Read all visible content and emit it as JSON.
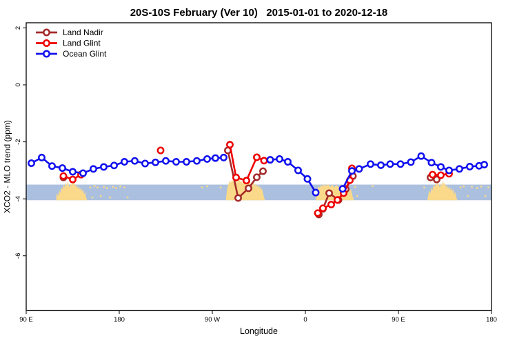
{
  "chart_data": {
    "type": "line",
    "title": "20S-10S February (Ver 10)   2015-01-01 to 2020-12-18",
    "xlabel": "Longitude",
    "ylabel": "XCO2 - MLO trend (ppm)",
    "x_axis": {
      "unit": "degrees eastward from 90E (longitude wraps past 180 and 0)",
      "range": [
        0,
        450
      ],
      "ticks": [
        {
          "deg": 0,
          "label": "90 E"
        },
        {
          "deg": 90,
          "label": "180"
        },
        {
          "deg": 180,
          "label": "90 W"
        },
        {
          "deg": 270,
          "label": "0"
        },
        {
          "deg": 360,
          "label": "90 E"
        },
        {
          "deg": 450,
          "label": "180"
        }
      ]
    },
    "y_axis": {
      "ticks": [
        2,
        0,
        -2,
        -4,
        -6
      ],
      "range": [
        -7.92,
        2.18
      ],
      "grid": false
    },
    "legend": {
      "position": "top-left"
    },
    "ocean_band": {
      "top": -3.5,
      "bottom": -4.05,
      "color": "#ABC0DE"
    },
    "land_color": "#FAD98A",
    "land_patches": [
      {
        "name": "australia-land-strip",
        "top_profile": [
          [
            29,
            -4.05
          ],
          [
            29.5,
            -3.8
          ],
          [
            31,
            -3.9
          ],
          [
            32,
            -3.7
          ],
          [
            33,
            -3.8
          ],
          [
            34,
            -3.6
          ],
          [
            35,
            -3.68
          ],
          [
            36,
            -3.5
          ],
          [
            37,
            -3.6
          ],
          [
            38,
            -3.42
          ],
          [
            39,
            -3.55
          ],
          [
            40,
            -3.38
          ],
          [
            41,
            -3.5
          ],
          [
            42,
            -3.6
          ],
          [
            43,
            -3.45
          ],
          [
            44,
            -3.55
          ],
          [
            45,
            -3.35
          ],
          [
            46,
            -3.5
          ],
          [
            47,
            -3.42
          ],
          [
            48,
            -3.6
          ],
          [
            49,
            -3.5
          ],
          [
            50,
            -3.65
          ],
          [
            51,
            -3.55
          ],
          [
            52,
            -3.7
          ],
          [
            53,
            -3.6
          ],
          [
            54,
            -3.75
          ],
          [
            55,
            -3.65
          ],
          [
            56,
            -3.85
          ],
          [
            57,
            -3.75
          ],
          [
            58,
            -3.95
          ],
          [
            59,
            -4.05
          ]
        ]
      },
      {
        "name": "south-america-land-strip",
        "top_profile": [
          [
            193,
            -4.05
          ],
          [
            194,
            -3.75
          ],
          [
            195,
            -3.55
          ],
          [
            196,
            -3.45
          ],
          [
            197,
            -3.35
          ],
          [
            198,
            -3.45
          ],
          [
            199,
            -3.3
          ],
          [
            200,
            -3.4
          ],
          [
            201,
            -3.3
          ],
          [
            202,
            -3.42
          ],
          [
            203,
            -3.32
          ],
          [
            204,
            -3.45
          ],
          [
            205,
            -3.35
          ],
          [
            206,
            -3.3
          ],
          [
            207,
            -3.42
          ],
          [
            208,
            -3.35
          ],
          [
            209,
            -3.48
          ],
          [
            210,
            -3.35
          ],
          [
            211,
            -3.45
          ],
          [
            212,
            -3.32
          ],
          [
            213,
            -3.42
          ],
          [
            214,
            -3.3
          ],
          [
            215,
            -3.45
          ],
          [
            216,
            -3.35
          ],
          [
            217,
            -3.5
          ],
          [
            218,
            -3.4
          ],
          [
            219,
            -3.52
          ],
          [
            220,
            -3.42
          ],
          [
            221,
            -3.55
          ],
          [
            222,
            -3.45
          ],
          [
            223,
            -3.58
          ],
          [
            224,
            -3.5
          ],
          [
            225,
            -3.62
          ],
          [
            226,
            -3.55
          ],
          [
            227,
            -3.7
          ],
          [
            228,
            -3.62
          ],
          [
            229,
            -3.8
          ],
          [
            230,
            -3.95
          ],
          [
            231,
            -4.05
          ]
        ]
      },
      {
        "name": "africa-land-strip",
        "top_profile": [
          [
            280,
            -4.05
          ],
          [
            281,
            -3.8
          ],
          [
            282,
            -3.65
          ],
          [
            283,
            -3.55
          ],
          [
            284,
            -3.62
          ],
          [
            285,
            -3.5
          ],
          [
            286,
            -3.58
          ],
          [
            287,
            -3.48
          ],
          [
            288,
            -3.56
          ],
          [
            289,
            -3.46
          ],
          [
            290,
            -3.55
          ],
          [
            292,
            -3.48
          ],
          [
            294,
            -3.58
          ],
          [
            296,
            -3.5
          ],
          [
            298,
            -3.6
          ],
          [
            300,
            -3.52
          ],
          [
            302,
            -3.6
          ],
          [
            304,
            -3.52
          ],
          [
            306,
            -3.62
          ],
          [
            308,
            -3.55
          ],
          [
            310,
            -3.65
          ],
          [
            312,
            -3.6
          ],
          [
            313,
            -3.72
          ],
          [
            314,
            -3.65
          ],
          [
            315,
            -3.8
          ],
          [
            316,
            -3.95
          ],
          [
            317,
            -4.05
          ]
        ]
      },
      {
        "name": "australia-land-strip-repeat",
        "top_profile": [
          [
            388,
            -4.05
          ],
          [
            389,
            -3.85
          ],
          [
            390,
            -3.7
          ],
          [
            391,
            -3.8
          ],
          [
            392,
            -3.6
          ],
          [
            393,
            -3.7
          ],
          [
            394,
            -3.5
          ],
          [
            395,
            -3.6
          ],
          [
            396,
            -3.42
          ],
          [
            397,
            -3.55
          ],
          [
            398,
            -3.38
          ],
          [
            399,
            -3.5
          ],
          [
            400,
            -3.6
          ],
          [
            401,
            -3.45
          ],
          [
            402,
            -3.55
          ],
          [
            403,
            -3.35
          ],
          [
            404,
            -3.5
          ],
          [
            405,
            -3.42
          ],
          [
            406,
            -3.6
          ],
          [
            407,
            -3.5
          ],
          [
            408,
            -3.65
          ],
          [
            409,
            -3.55
          ],
          [
            410,
            -3.7
          ],
          [
            411,
            -3.6
          ],
          [
            412,
            -3.75
          ],
          [
            413,
            -3.65
          ],
          [
            414,
            -3.85
          ],
          [
            415,
            -3.75
          ],
          [
            416,
            -3.95
          ],
          [
            417,
            -4.05
          ]
        ]
      }
    ],
    "land_speckles": [
      [
        62,
        -3.6
      ],
      [
        64,
        -3.95
      ],
      [
        66,
        -3.55
      ],
      [
        69,
        -3.6
      ],
      [
        72,
        -3.9
      ],
      [
        75,
        -3.58
      ],
      [
        78,
        -3.62
      ],
      [
        81,
        -3.95
      ],
      [
        84,
        -3.58
      ],
      [
        87,
        -3.62
      ],
      [
        91,
        -3.56
      ],
      [
        95,
        -3.6
      ],
      [
        98,
        -3.95
      ],
      [
        170,
        -3.6
      ],
      [
        175,
        -3.56
      ],
      [
        188,
        -3.6
      ],
      [
        318,
        -3.58
      ],
      [
        320,
        -3.9
      ],
      [
        335,
        -3.55
      ],
      [
        385,
        -3.6
      ],
      [
        420,
        -3.6
      ],
      [
        423,
        -3.56
      ],
      [
        427,
        -3.9
      ],
      [
        431,
        -3.58
      ],
      [
        436,
        -3.62
      ],
      [
        440,
        -3.57
      ],
      [
        444,
        -3.9
      ],
      [
        447,
        -3.6
      ]
    ],
    "series": [
      {
        "name": "Land Nadir",
        "color": "#A52A2A",
        "points": [
          [
            36,
            -3.25
          ],
          [
            195,
            -2.3
          ],
          [
            205,
            -3.97
          ],
          [
            215,
            -3.63
          ],
          [
            223,
            -3.24
          ],
          [
            229,
            -3.03
          ],
          [
            283,
            -4.55
          ],
          [
            287,
            -4.35
          ],
          [
            293,
            -3.8
          ],
          [
            302,
            -4.04
          ],
          [
            309,
            -3.66
          ],
          [
            316,
            -3.2
          ],
          [
            391,
            -3.25
          ],
          [
            397,
            -3.32
          ]
        ]
      },
      {
        "name": "Land Glint",
        "color": "#EE0000",
        "points": [
          [
            36,
            -3.2
          ],
          [
            45,
            -3.32
          ],
          [
            53,
            -3.15
          ],
          [
            130,
            -2.3
          ],
          [
            197,
            -2.1
          ],
          [
            203,
            -3.25
          ],
          [
            213,
            -3.36
          ],
          [
            223,
            -2.54
          ],
          [
            230,
            -2.66
          ],
          [
            282,
            -4.5
          ],
          [
            287,
            -4.33
          ],
          [
            295,
            -4.2
          ],
          [
            301,
            -4.04
          ],
          [
            307,
            -3.8
          ],
          [
            313,
            -3.35
          ],
          [
            315,
            -2.93
          ],
          [
            393,
            -3.15
          ],
          [
            401,
            -3.17
          ],
          [
            409,
            -3.12
          ]
        ]
      },
      {
        "name": "Ocean Glint",
        "color": "#1010EE",
        "points": [
          [
            5,
            -2.75
          ],
          [
            15,
            -2.55
          ],
          [
            25,
            -2.85
          ],
          [
            35,
            -2.92
          ],
          [
            45,
            -3.05
          ],
          [
            55,
            -3.1
          ],
          [
            65,
            -2.95
          ],
          [
            75,
            -2.88
          ],
          [
            85,
            -2.83
          ],
          [
            95,
            -2.7
          ],
          [
            105,
            -2.67
          ],
          [
            115,
            -2.76
          ],
          [
            125,
            -2.72
          ],
          [
            135,
            -2.67
          ],
          [
            145,
            -2.7
          ],
          [
            155,
            -2.7
          ],
          [
            165,
            -2.67
          ],
          [
            175,
            -2.6
          ],
          [
            183,
            -2.57
          ],
          [
            191,
            -2.55
          ],
          [
            236,
            -2.63
          ],
          [
            245,
            -2.6
          ],
          [
            253,
            -2.7
          ],
          [
            263,
            -3.0
          ],
          [
            272,
            -3.3
          ],
          [
            280,
            -3.78
          ],
          [
            306,
            -3.65
          ],
          [
            315,
            -3.02
          ],
          [
            322,
            -2.95
          ],
          [
            333,
            -2.78
          ],
          [
            343,
            -2.82
          ],
          [
            352,
            -2.78
          ],
          [
            362,
            -2.78
          ],
          [
            372,
            -2.71
          ],
          [
            382,
            -2.5
          ],
          [
            392,
            -2.73
          ],
          [
            401,
            -2.88
          ],
          [
            409,
            -3.0
          ],
          [
            419,
            -2.95
          ],
          [
            429,
            -2.87
          ],
          [
            438,
            -2.84
          ],
          [
            443,
            -2.8
          ]
        ]
      }
    ]
  }
}
